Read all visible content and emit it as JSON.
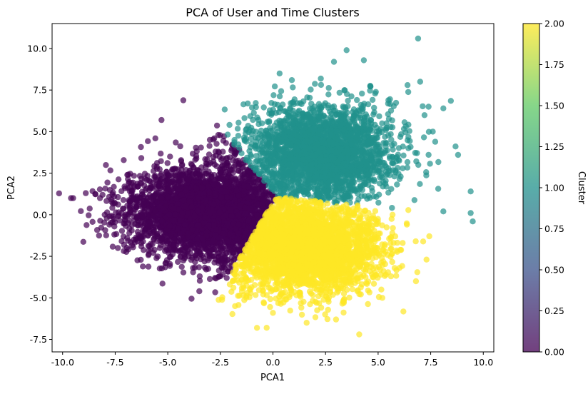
{
  "chart_data": {
    "type": "scatter",
    "title": "PCA of User and Time Clusters",
    "xlabel": "PCA1",
    "ylabel": "PCA2",
    "xlim": [
      -10.5,
      10.5
    ],
    "ylim": [
      -8.25,
      11.5
    ],
    "xticks": [
      -10.0,
      -7.5,
      -5.0,
      -2.5,
      0.0,
      2.5,
      5.0,
      7.5,
      10.0
    ],
    "yticks": [
      -7.5,
      -5.0,
      -2.5,
      0.0,
      2.5,
      5.0,
      7.5,
      10.0
    ],
    "grid": false,
    "point_alpha": 0.7,
    "colorbar": {
      "label": "Cluster",
      "range": [
        0.0,
        2.0
      ],
      "ticks": [
        0.0,
        0.25,
        0.5,
        0.75,
        1.0,
        1.25,
        1.5,
        1.75,
        2.0
      ],
      "colormap": "viridis",
      "colormap_stops": [
        "#440154",
        "#3b528b",
        "#21918c",
        "#5ec962",
        "#fde725"
      ]
    },
    "series": [
      {
        "cluster": 0,
        "color": "#440154",
        "approx_points": 3500,
        "sample_outliers": [
          [
            -9.6,
            1.0
          ],
          [
            -9.5,
            1.0
          ],
          [
            -8.9,
            1.3
          ],
          [
            -8.1,
            1.2
          ],
          [
            -8.0,
            0.0
          ],
          [
            -7.9,
            -0.2
          ],
          [
            -5.3,
            5.7
          ],
          [
            -3.5,
            -4.6
          ],
          [
            -3.0,
            4.5
          ],
          [
            -2.6,
            4.8
          ],
          [
            -2.5,
            -3.7
          ],
          [
            -2.2,
            -3.8
          ],
          [
            -1.6,
            3.9
          ],
          [
            -3.8,
            -3.2
          ],
          [
            -4.7,
            -1.5
          ]
        ]
      },
      {
        "cluster": 1,
        "color": "#21918c",
        "approx_points": 2600,
        "sample_outliers": [
          [
            6.9,
            10.6
          ],
          [
            3.5,
            9.9
          ],
          [
            2.9,
            9.2
          ],
          [
            7.0,
            8.0
          ],
          [
            8.1,
            6.4
          ],
          [
            8.8,
            3.6
          ],
          [
            9.4,
            1.4
          ],
          [
            9.4,
            0.1
          ],
          [
            9.5,
            -0.4
          ],
          [
            8.1,
            0.2
          ],
          [
            7.6,
            5.0
          ],
          [
            6.4,
            7.8
          ],
          [
            7.4,
            6.5
          ],
          [
            -1.1,
            5.1
          ],
          [
            0.9,
            8.1
          ]
        ]
      },
      {
        "cluster": 2,
        "color": "#fde725",
        "approx_points": 3200,
        "sample_outliers": [
          [
            -1.8,
            -5.5
          ],
          [
            -0.3,
            -6.8
          ],
          [
            4.1,
            -7.2
          ],
          [
            1.6,
            -6.5
          ],
          [
            7.3,
            -2.7
          ],
          [
            6.8,
            -4.0
          ],
          [
            5.2,
            -5.0
          ],
          [
            3.0,
            -6.3
          ],
          [
            -1.4,
            -4.4
          ],
          [
            0.0,
            -5.9
          ]
        ]
      }
    ]
  }
}
